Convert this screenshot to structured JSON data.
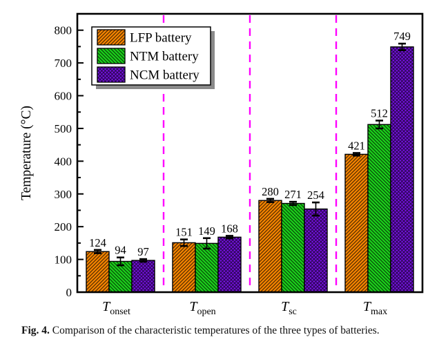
{
  "caption": {
    "label": "Fig. 4.",
    "text": "Comparison of the characteristic temperatures of the three types of batteries."
  },
  "chart_data": {
    "type": "bar",
    "title": "",
    "xlabel": "",
    "ylabel": "Temperature (°C)",
    "ylim": [
      0,
      850
    ],
    "y_major_tick": 100,
    "y_minor_tick": 50,
    "y_tick_labels": [
      "0",
      "100",
      "200",
      "300",
      "400",
      "500",
      "600",
      "700",
      "800"
    ],
    "grid": false,
    "legend_position": "top-left-inside",
    "categories": [
      {
        "main": "T",
        "sub": "onset"
      },
      {
        "main": "T",
        "sub": "open"
      },
      {
        "main": "T",
        "sub": "sc"
      },
      {
        "main": "T",
        "sub": "max"
      }
    ],
    "series": [
      {
        "name": "LFP battery",
        "color": "#F98600",
        "hatch": "diagonal-up",
        "values": [
          124,
          151,
          280,
          421
        ],
        "errors": [
          5,
          10,
          5,
          4
        ]
      },
      {
        "name": "NTM battery",
        "color": "#1BD41B",
        "hatch": "diagonal-down",
        "values": [
          94,
          149,
          271,
          512
        ],
        "errors": [
          12,
          16,
          5,
          12
        ]
      },
      {
        "name": "NCM battery",
        "color": "#7D12F0",
        "hatch": "crosshatch",
        "values": [
          97,
          168,
          254,
          749
        ],
        "errors": [
          4,
          4,
          20,
          10
        ]
      }
    ],
    "value_labels_shown": true,
    "error_bars_shown": true,
    "separator_lines": {
      "style": "dashed",
      "color": "#FF00FF",
      "between_groups": true
    },
    "frame": "full-box",
    "hatch_overlay_color": "rgba(0,0,0,0.62)"
  }
}
